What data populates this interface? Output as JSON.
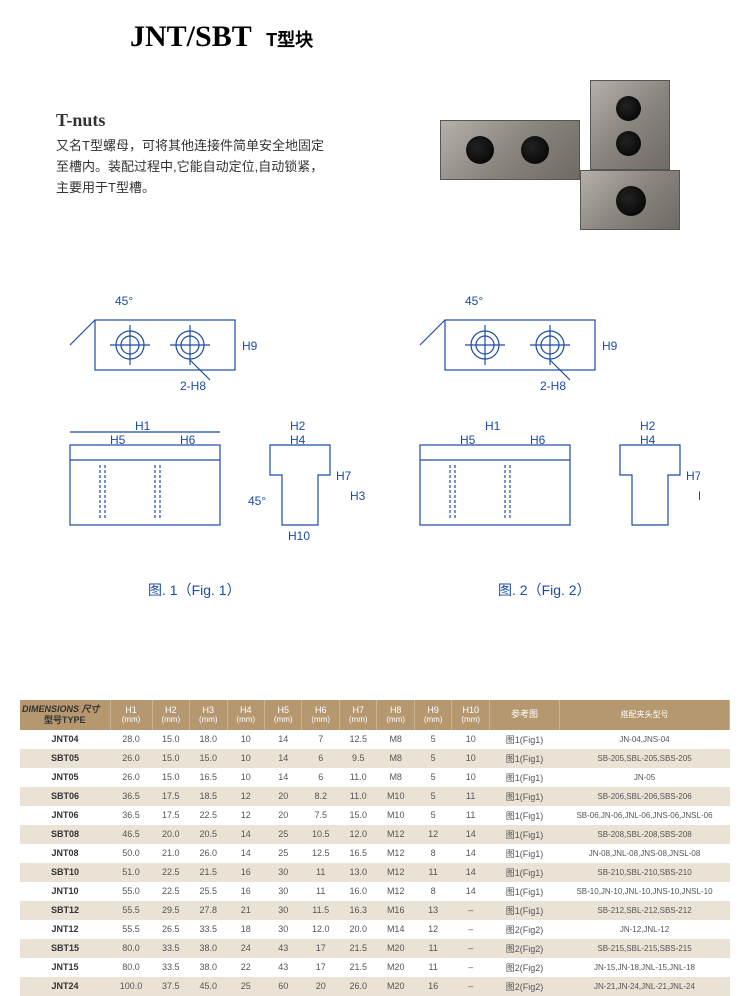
{
  "header": {
    "title_main": "JNT/SBT",
    "title_sub": "T型块"
  },
  "desc": {
    "title": "T-nuts",
    "line1": "又名T型螺母，可将其他连接件简单安全地固定",
    "line2": "至槽内。装配过程中,它能自动定位,自动锁紧，",
    "line3": "主要用于T型槽。"
  },
  "figcaps": {
    "fig1": "图. 1（Fig. 1）",
    "fig2": "图. 2（Fig. 2）"
  },
  "diagram_labels": {
    "angle": "45°",
    "h8": "2-H8",
    "h9": "H9",
    "h1": "H1",
    "h2": "H2",
    "h3": "H3",
    "h4": "H4",
    "h5": "H5",
    "h6": "H6",
    "h7": "H7",
    "h10": "H10"
  },
  "table": {
    "headers": {
      "type": "型号TYPE",
      "dim": "DIMENSIONS 尺寸",
      "h1": {
        "top": "H1",
        "bot": "(mm)"
      },
      "h2": {
        "top": "H2",
        "bot": "(mm)"
      },
      "h3": {
        "top": "H3",
        "bot": "(mm)"
      },
      "h4": {
        "top": "H4",
        "bot": "(mm)"
      },
      "h5": {
        "top": "H5",
        "bot": "(mm)"
      },
      "h6": {
        "top": "H6",
        "bot": "(mm)"
      },
      "h7": {
        "top": "H7",
        "bot": "(mm)"
      },
      "h8": {
        "top": "H8",
        "bot": "(mm)"
      },
      "h9": {
        "top": "H9",
        "bot": "(mm)"
      },
      "h10": {
        "top": "H10",
        "bot": "(mm)"
      },
      "ref": "参考图",
      "match": "搭配夹头型号"
    },
    "rows": [
      {
        "type": "JNT04",
        "h1": "28.0",
        "h2": "15.0",
        "h3": "18.0",
        "h4": "10",
        "h5": "14",
        "h6": "7",
        "h7": "12.5",
        "h8": "M8",
        "h9": "5",
        "h10": "10",
        "ref": "图1(Fig1)",
        "match": "JN-04,JNS-04"
      },
      {
        "type": "SBT05",
        "h1": "26.0",
        "h2": "15.0",
        "h3": "15.0",
        "h4": "10",
        "h5": "14",
        "h6": "6",
        "h7": "9.5",
        "h8": "M8",
        "h9": "5",
        "h10": "10",
        "ref": "图1(Fig1)",
        "match": "SB-205,SBL-205,SBS-205"
      },
      {
        "type": "JNT05",
        "h1": "26.0",
        "h2": "15.0",
        "h3": "16.5",
        "h4": "10",
        "h5": "14",
        "h6": "6",
        "h7": "11.0",
        "h8": "M8",
        "h9": "5",
        "h10": "10",
        "ref": "图1(Fig1)",
        "match": "JN-05"
      },
      {
        "type": "SBT06",
        "h1": "36.5",
        "h2": "17.5",
        "h3": "18.5",
        "h4": "12",
        "h5": "20",
        "h6": "8.2",
        "h7": "11.0",
        "h8": "M10",
        "h9": "5",
        "h10": "11",
        "ref": "图1(Fig1)",
        "match": "SB-206,SBL-206,SBS-206"
      },
      {
        "type": "JNT06",
        "h1": "36.5",
        "h2": "17.5",
        "h3": "22.5",
        "h4": "12",
        "h5": "20",
        "h6": "7.5",
        "h7": "15.0",
        "h8": "M10",
        "h9": "5",
        "h10": "11",
        "ref": "图1(Fig1)",
        "match": "SB-06,JN-06,JNL-06,JNS-06,JNSL-06"
      },
      {
        "type": "SBT08",
        "h1": "46.5",
        "h2": "20.0",
        "h3": "20.5",
        "h4": "14",
        "h5": "25",
        "h6": "10.5",
        "h7": "12.0",
        "h8": "M12",
        "h9": "12",
        "h10": "14",
        "ref": "图1(Fig1)",
        "match": "SB-208,SBL-208,SBS-208"
      },
      {
        "type": "JNT08",
        "h1": "50.0",
        "h2": "21.0",
        "h3": "26.0",
        "h4": "14",
        "h5": "25",
        "h6": "12.5",
        "h7": "16.5",
        "h8": "M12",
        "h9": "8",
        "h10": "14",
        "ref": "图1(Fig1)",
        "match": "JN-08,JNL-08,JNS-08,JNSL-08"
      },
      {
        "type": "SBT10",
        "h1": "51.0",
        "h2": "22.5",
        "h3": "21.5",
        "h4": "16",
        "h5": "30",
        "h6": "11",
        "h7": "13.0",
        "h8": "M12",
        "h9": "11",
        "h10": "14",
        "ref": "图1(Fig1)",
        "match": "SB-210,SBL-210,SBS-210"
      },
      {
        "type": "JNT10",
        "h1": "55.0",
        "h2": "22.5",
        "h3": "25.5",
        "h4": "16",
        "h5": "30",
        "h6": "11",
        "h7": "16.0",
        "h8": "M12",
        "h9": "8",
        "h10": "14",
        "ref": "图1(Fig1)",
        "match": "SB-10,JN-10,JNL-10,JNS-10,JNSL-10"
      },
      {
        "type": "SBT12",
        "h1": "55.5",
        "h2": "29.5",
        "h3": "27.8",
        "h4": "21",
        "h5": "30",
        "h6": "11.5",
        "h7": "16.3",
        "h8": "M16",
        "h9": "13",
        "h10": "–",
        "ref": "图1(Fig1)",
        "match": "SB-212,SBL-212,SBS-212"
      },
      {
        "type": "JNT12",
        "h1": "55.5",
        "h2": "26.5",
        "h3": "33.5",
        "h4": "18",
        "h5": "30",
        "h6": "12.0",
        "h7": "20.0",
        "h8": "M14",
        "h9": "12",
        "h10": "–",
        "ref": "图2(Fig2)",
        "match": "JN-12,JNL-12"
      },
      {
        "type": "SBT15",
        "h1": "80.0",
        "h2": "33.5",
        "h3": "38.0",
        "h4": "24",
        "h5": "43",
        "h6": "17",
        "h7": "21.5",
        "h8": "M20",
        "h9": "11",
        "h10": "–",
        "ref": "图2(Fig2)",
        "match": "SB-215,SBL-215,SBS-215"
      },
      {
        "type": "JNT15",
        "h1": "80.0",
        "h2": "33.5",
        "h3": "38.0",
        "h4": "22",
        "h5": "43",
        "h6": "17",
        "h7": "21.5",
        "h8": "M20",
        "h9": "11",
        "h10": "–",
        "ref": "图2(Fig2)",
        "match": "JN-15,JN-18,JNL-15,JNL-18"
      },
      {
        "type": "JNT24",
        "h1": "100.0",
        "h2": "37.5",
        "h3": "45.0",
        "h4": "25",
        "h5": "60",
        "h6": "20",
        "h7": "26.0",
        "h8": "M20",
        "h9": "16",
        "h10": "–",
        "ref": "图2(Fig2)",
        "match": "JN-21,JN-24,JNL-21,JNL-24"
      }
    ]
  },
  "style": {
    "header_bg": "#b59770",
    "header_fg": "#ffffff",
    "row_odd_bg": "#ffffff",
    "row_even_bg": "#eae2d5",
    "diagram_stroke": "#1b4ba8",
    "text_color": "#333333"
  }
}
